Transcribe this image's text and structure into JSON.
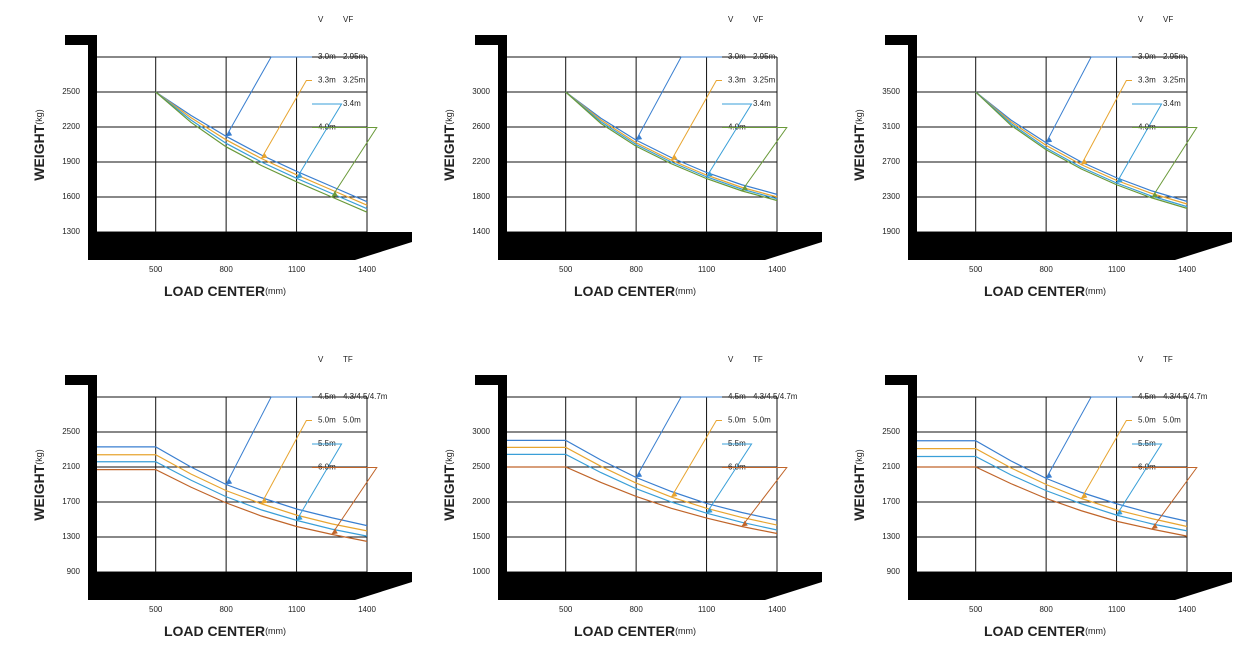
{
  "chart_data": [
    {
      "type": "line",
      "y_label": "WEIGHT",
      "y_unit": "(kg)",
      "x_label": "LOAD CENTER",
      "x_unit": "(mm)",
      "legend_headers": [
        "V",
        "VF"
      ],
      "x": [
        500,
        650,
        800,
        950,
        1100,
        1250,
        1400
      ],
      "xlim": [
        250,
        1400
      ],
      "ylim": [
        1300,
        2800
      ],
      "xticks": [
        500,
        800,
        1100,
        1400
      ],
      "yticks": [
        2500,
        2200,
        1900,
        1600,
        1300
      ],
      "grid": true,
      "series": [
        {
          "labels": [
            "3.0m",
            "2.95m"
          ],
          "color": "#3a7fd0",
          "values": [
            2500,
            2300,
            2120,
            1960,
            1820,
            1690,
            1560
          ]
        },
        {
          "labels": [
            "3.3m",
            "3.25m"
          ],
          "color": "#e8a530",
          "values": [
            2500,
            2280,
            2090,
            1930,
            1790,
            1660,
            1530
          ]
        },
        {
          "labels": [
            null,
            "3.4m"
          ],
          "color": "#3a9fd8",
          "values": [
            2500,
            2260,
            2060,
            1900,
            1760,
            1630,
            1500
          ]
        },
        {
          "labels": [
            "4.0m",
            null
          ],
          "color": "#6a9a3a",
          "values": [
            2500,
            2240,
            2030,
            1870,
            1730,
            1600,
            1470
          ]
        }
      ]
    },
    {
      "type": "line",
      "y_label": "WEIGHT",
      "y_unit": "(kg)",
      "x_label": "LOAD CENTER",
      "x_unit": "(mm)",
      "legend_headers": [
        "V",
        "VF"
      ],
      "x": [
        500,
        650,
        800,
        950,
        1100,
        1250,
        1400
      ],
      "xlim": [
        250,
        1400
      ],
      "ylim": [
        1400,
        3400
      ],
      "xticks": [
        500,
        800,
        1100,
        1400
      ],
      "yticks": [
        3000,
        2600,
        2200,
        1800,
        1400
      ],
      "grid": true,
      "series": [
        {
          "labels": [
            "3.0m",
            "2.95m"
          ],
          "color": "#3a7fd0",
          "values": [
            3000,
            2700,
            2450,
            2250,
            2080,
            1940,
            1830
          ]
        },
        {
          "labels": [
            "3.3m",
            "3.25m"
          ],
          "color": "#e8a530",
          "values": [
            3000,
            2680,
            2420,
            2220,
            2050,
            1910,
            1800
          ]
        },
        {
          "labels": [
            null,
            "3.4m"
          ],
          "color": "#3a9fd8",
          "values": [
            3000,
            2660,
            2400,
            2200,
            2030,
            1890,
            1780
          ]
        },
        {
          "labels": [
            "4.0m",
            null
          ],
          "color": "#6a9a3a",
          "values": [
            3000,
            2640,
            2380,
            2180,
            2010,
            1870,
            1760
          ]
        }
      ]
    },
    {
      "type": "line",
      "y_label": "WEIGHT",
      "y_unit": "(kg)",
      "x_label": "LOAD CENTER",
      "x_unit": "(mm)",
      "legend_headers": [
        "V",
        "VF"
      ],
      "x": [
        500,
        650,
        800,
        950,
        1100,
        1250,
        1400
      ],
      "xlim": [
        250,
        1400
      ],
      "ylim": [
        1900,
        3900
      ],
      "xticks": [
        500,
        800,
        1100,
        1400
      ],
      "yticks": [
        3500,
        3100,
        2700,
        2300,
        1900
      ],
      "grid": true,
      "series": [
        {
          "labels": [
            "3.0m",
            "2.95m"
          ],
          "color": "#3a7fd0",
          "values": [
            3500,
            3180,
            2920,
            2700,
            2520,
            2370,
            2250
          ]
        },
        {
          "labels": [
            "3.3m",
            "3.25m"
          ],
          "color": "#e8a530",
          "values": [
            3500,
            3160,
            2890,
            2670,
            2490,
            2340,
            2220
          ]
        },
        {
          "labels": [
            null,
            "3.4m"
          ],
          "color": "#3a9fd8",
          "values": [
            3500,
            3140,
            2860,
            2640,
            2460,
            2310,
            2190
          ]
        },
        {
          "labels": [
            "4.0m",
            null
          ],
          "color": "#6a9a3a",
          "values": [
            3500,
            3120,
            2840,
            2620,
            2440,
            2290,
            2170
          ]
        }
      ]
    },
    {
      "type": "line",
      "y_label": "WEIGHT",
      "y_unit": "(kg)",
      "x_label": "LOAD CENTER",
      "x_unit": "(mm)",
      "legend_headers": [
        "V",
        "TF"
      ],
      "x": [
        250,
        500,
        650,
        800,
        950,
        1100,
        1250,
        1400
      ],
      "xlim": [
        250,
        1400
      ],
      "ylim": [
        900,
        2900
      ],
      "xticks": [
        500,
        800,
        1100,
        1400
      ],
      "yticks": [
        2500,
        2100,
        1700,
        1300,
        900
      ],
      "grid": true,
      "series": [
        {
          "labels": [
            "4.5m",
            "4.3/4.5/4.7m"
          ],
          "color": "#3a7fd0",
          "values": [
            2330,
            2330,
            2100,
            1900,
            1750,
            1620,
            1520,
            1430
          ]
        },
        {
          "labels": [
            "5.0m",
            "5.0m"
          ],
          "color": "#e8a530",
          "values": [
            2240,
            2240,
            2020,
            1830,
            1680,
            1550,
            1450,
            1370
          ]
        },
        {
          "labels": [
            "5.5m",
            null
          ],
          "color": "#3a9fd8",
          "values": [
            2160,
            2160,
            1950,
            1760,
            1610,
            1490,
            1390,
            1310
          ]
        },
        {
          "labels": [
            "6.0m",
            null
          ],
          "color": "#c0652a",
          "values": [
            2070,
            2070,
            1870,
            1690,
            1540,
            1420,
            1330,
            1250
          ]
        }
      ]
    },
    {
      "type": "line",
      "y_label": "WEIGHT",
      "y_unit": "(kg)",
      "x_label": "LOAD CENTER",
      "x_unit": "(mm)",
      "legend_headers": [
        "V",
        "TF"
      ],
      "x": [
        250,
        500,
        650,
        800,
        950,
        1100,
        1250,
        1400
      ],
      "xlim": [
        250,
        1400
      ],
      "ylim": [
        1000,
        3500
      ],
      "xticks": [
        500,
        800,
        1100,
        1400
      ],
      "yticks": [
        3000,
        2500,
        2000,
        1500,
        1000
      ],
      "grid": true,
      "series": [
        {
          "labels": [
            "4.5m",
            "4.3/4.5/4.7m"
          ],
          "color": "#3a7fd0",
          "values": [
            2880,
            2880,
            2600,
            2350,
            2150,
            1980,
            1850,
            1740
          ]
        },
        {
          "labels": [
            "5.0m",
            "5.0m"
          ],
          "color": "#e8a530",
          "values": [
            2780,
            2780,
            2510,
            2270,
            2070,
            1910,
            1780,
            1670
          ]
        },
        {
          "labels": [
            "5.5m",
            null
          ],
          "color": "#3a9fd8",
          "values": [
            2680,
            2680,
            2420,
            2190,
            2000,
            1840,
            1710,
            1600
          ]
        },
        {
          "labels": [
            "6.0m",
            null
          ],
          "color": "#c0652a",
          "values": [
            2500,
            2500,
            2280,
            2080,
            1910,
            1770,
            1650,
            1550
          ]
        }
      ]
    },
    {
      "type": "line",
      "y_label": "WEIGHT",
      "y_unit": "(kg)",
      "x_label": "LOAD CENTER",
      "x_unit": "(mm)",
      "legend_headers": [
        "V",
        "TF"
      ],
      "x": [
        250,
        500,
        650,
        800,
        950,
        1100,
        1250,
        1400
      ],
      "xlim": [
        250,
        1400
      ],
      "ylim": [
        900,
        2900
      ],
      "xticks": [
        500,
        800,
        1100,
        1400
      ],
      "yticks": [
        2500,
        2100,
        1700,
        1300,
        900
      ],
      "grid": true,
      "series": [
        {
          "labels": [
            "4.5m",
            "4.3/4.5/4.7m"
          ],
          "color": "#3a7fd0",
          "values": [
            2400,
            2400,
            2170,
            1970,
            1810,
            1680,
            1570,
            1480
          ]
        },
        {
          "labels": [
            "5.0m",
            "5.0m"
          ],
          "color": "#e8a530",
          "values": [
            2310,
            2310,
            2090,
            1900,
            1740,
            1610,
            1510,
            1420
          ]
        },
        {
          "labels": [
            "5.5m",
            null
          ],
          "color": "#3a9fd8",
          "values": [
            2220,
            2220,
            2010,
            1830,
            1680,
            1550,
            1450,
            1370
          ]
        },
        {
          "labels": [
            "6.0m",
            null
          ],
          "color": "#c0652a",
          "values": [
            2100,
            2100,
            1910,
            1740,
            1600,
            1480,
            1390,
            1310
          ]
        }
      ]
    }
  ]
}
